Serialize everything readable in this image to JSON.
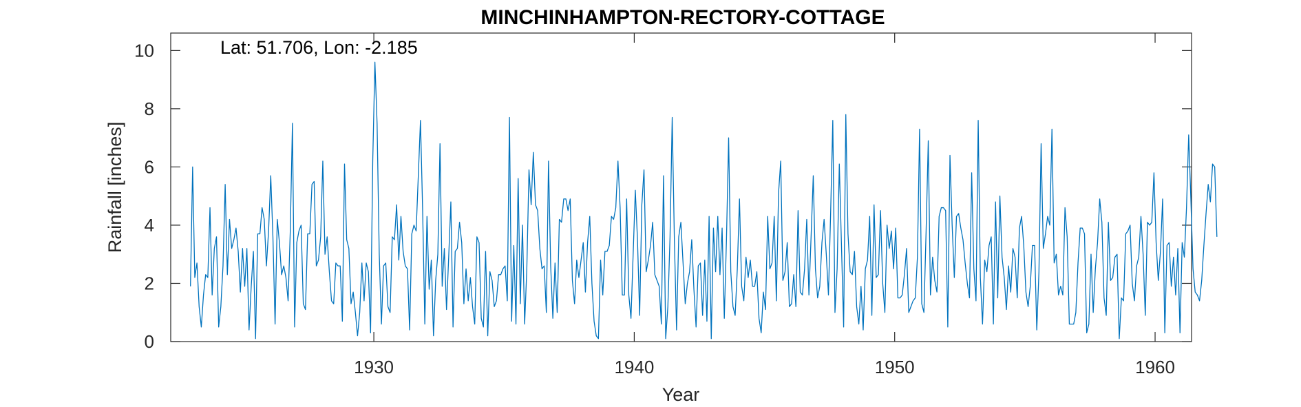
{
  "chart_data": {
    "type": "line",
    "title": "MINCHINHAMPTON-RECTORY-COTTAGE",
    "xlabel": "Year",
    "ylabel": "Rainfall [inches]",
    "annotation": "Lat: 51.706, Lon: -2.185",
    "xlim": [
      1922.2,
      1961.4
    ],
    "ylim": [
      0,
      10.6
    ],
    "xticks": [
      1930,
      1940,
      1950,
      1960
    ],
    "yticks": [
      0,
      2,
      4,
      6,
      8,
      10
    ],
    "grid": false,
    "line_color": "#0072BD",
    "x_start": 1922.958,
    "x_step": 0.08333,
    "series": [
      {
        "values": [
          1.9,
          6.0,
          2.2,
          2.7,
          1.2,
          0.5,
          1.6,
          2.3,
          2.2,
          4.6,
          1.6,
          3.2,
          3.6,
          0.5,
          1.2,
          2.6,
          5.4,
          2.3,
          4.2,
          3.2,
          3.5,
          3.9,
          3.1,
          1.7,
          3.2,
          1.9,
          3.2,
          0.4,
          1.9,
          3.1,
          0.1,
          3.7,
          3.7,
          4.6,
          4.2,
          2.6,
          3.8,
          5.7,
          3.6,
          0.6,
          4.2,
          3.4,
          2.3,
          2.6,
          2.2,
          1.4,
          3.8,
          7.5,
          0.5,
          3.4,
          3.8,
          4.0,
          1.3,
          1.1,
          3.7,
          3.7,
          5.4,
          5.5,
          2.6,
          2.8,
          3.6,
          6.2,
          3.0,
          3.6,
          2.4,
          1.4,
          1.3,
          2.7,
          2.6,
          2.6,
          0.7,
          6.1,
          3.5,
          3.2,
          1.3,
          1.7,
          1.0,
          0.2,
          1.0,
          2.7,
          1.4,
          2.7,
          2.4,
          0.3,
          6.2,
          9.6,
          7.5,
          3.0,
          0.6,
          2.6,
          2.7,
          1.2,
          1.0,
          3.6,
          3.5,
          4.7,
          2.8,
          4.3,
          3.1,
          2.6,
          2.5,
          0.4,
          3.7,
          4.0,
          3.8,
          5.7,
          7.6,
          4.5,
          0.6,
          4.3,
          1.8,
          2.8,
          0.2,
          2.1,
          3.0,
          6.8,
          1.9,
          3.2,
          1.1,
          2.9,
          4.8,
          0.5,
          3.1,
          3.2,
          4.1,
          3.4,
          1.3,
          2.5,
          1.4,
          2.2,
          1.2,
          0.6,
          3.6,
          3.4,
          0.8,
          0.5,
          3.1,
          0.2,
          2.4,
          2.1,
          1.2,
          1.4,
          2.3,
          2.3,
          2.5,
          2.6,
          1.4,
          7.7,
          0.7,
          3.3,
          0.6,
          5.6,
          1.3,
          4.0,
          0.6,
          2.5,
          5.9,
          4.7,
          6.5,
          4.7,
          4.5,
          3.2,
          2.5,
          2.6,
          1.0,
          6.2,
          2.6,
          0.8,
          2.7,
          1.0,
          4.2,
          4.1,
          4.9,
          4.9,
          4.5,
          4.9,
          2.1,
          1.3,
          2.8,
          2.2,
          2.8,
          3.4,
          1.7,
          3.4,
          4.3,
          2.0,
          0.7,
          0.2,
          0.1,
          2.8,
          1.6,
          3.1,
          3.1,
          3.3,
          4.3,
          4.2,
          4.6,
          6.2,
          4.6,
          1.6,
          1.6,
          4.9,
          1.6,
          0.8,
          3.0,
          5.2,
          3.5,
          0.9,
          4.7,
          5.9,
          2.4,
          2.8,
          3.3,
          4.1,
          2.3,
          2.1,
          1.9,
          0.6,
          5.7,
          0.1,
          1.2,
          3.6,
          7.7,
          3.5,
          0.4,
          3.6,
          4.1,
          2.7,
          1.3,
          2.0,
          2.4,
          3.5,
          1.8,
          0.5,
          2.6,
          2.7,
          0.9,
          2.8,
          0.7,
          4.3,
          0.1,
          3.9,
          2.4,
          4.3,
          2.3,
          3.9,
          0.8,
          3.5,
          7.0,
          2.4,
          1.2,
          0.9,
          2.5,
          4.9,
          1.9,
          1.4,
          2.9,
          2.2,
          2.8,
          1.9,
          1.9,
          2.4,
          0.8,
          0.3,
          1.7,
          1.1,
          4.3,
          2.5,
          2.7,
          4.3,
          1.4,
          5.1,
          6.2,
          2.1,
          2.4,
          3.4,
          1.2,
          1.3,
          2.3,
          1.2,
          4.5,
          1.7,
          1.6,
          2.5,
          4.2,
          1.6,
          3.6,
          5.7,
          2.5,
          1.5,
          1.9,
          3.4,
          4.2,
          3.0,
          1.6,
          4.4,
          7.6,
          1.0,
          2.5,
          6.1,
          3.3,
          0.5,
          7.8,
          3.7,
          2.4,
          2.3,
          3.1,
          1.2,
          0.6,
          1.9,
          0.4,
          2.5,
          2.8,
          4.3,
          0.9,
          4.7,
          2.2,
          2.3,
          4.5,
          2.0,
          1.0,
          4.0,
          3.2,
          3.8,
          2.5,
          3.9,
          1.5,
          1.5,
          1.6,
          2.3,
          3.2,
          1.0,
          1.2,
          1.4,
          1.5,
          2.9,
          7.3,
          1.3,
          1.0,
          3.8,
          6.9,
          1.6,
          2.9,
          2.1,
          1.7,
          4.3,
          4.6,
          4.6,
          4.5,
          0.5,
          6.4,
          4.0,
          2.2,
          4.3,
          4.4,
          3.9,
          3.5,
          2.7,
          2.0,
          1.5,
          5.8,
          2.5,
          1.4,
          7.6,
          2.2,
          0.6,
          2.8,
          2.4,
          3.3,
          3.6,
          0.6,
          4.8,
          1.5,
          5.0,
          2.9,
          2.2,
          1.1,
          2.6,
          1.7,
          3.2,
          2.9,
          1.5,
          3.9,
          4.3,
          3.3,
          1.7,
          1.2,
          1.9,
          3.3,
          3.3,
          0.4,
          2.4,
          6.8,
          3.2,
          3.7,
          4.3,
          4.0,
          7.3,
          2.7,
          3.0,
          1.6,
          1.9,
          1.6,
          4.6,
          3.6,
          0.6,
          0.6,
          0.6,
          1.0,
          2.7,
          3.9,
          3.9,
          3.7,
          0.3,
          0.6,
          3.0,
          1.0,
          2.5,
          3.4,
          4.9,
          4.1,
          1.5,
          0.9,
          4.1,
          2.1,
          2.2,
          2.9,
          3.0,
          0.1,
          1.5,
          1.4,
          3.7,
          3.8,
          4.0,
          2.0,
          1.4,
          2.6,
          2.9,
          4.3,
          3.0,
          0.9,
          4.1,
          4.0,
          4.1,
          5.8,
          3.4,
          2.1,
          3.1,
          4.9,
          0.3,
          3.3,
          3.4,
          1.9,
          2.9,
          1.6,
          3.2,
          0.3,
          3.4,
          2.9,
          4.6,
          7.1,
          4.9,
          2.5,
          1.7,
          1.6,
          1.4,
          2.1,
          3.3,
          4.4,
          5.4,
          4.8,
          6.1,
          6.0,
          3.6
        ]
      }
    ]
  }
}
